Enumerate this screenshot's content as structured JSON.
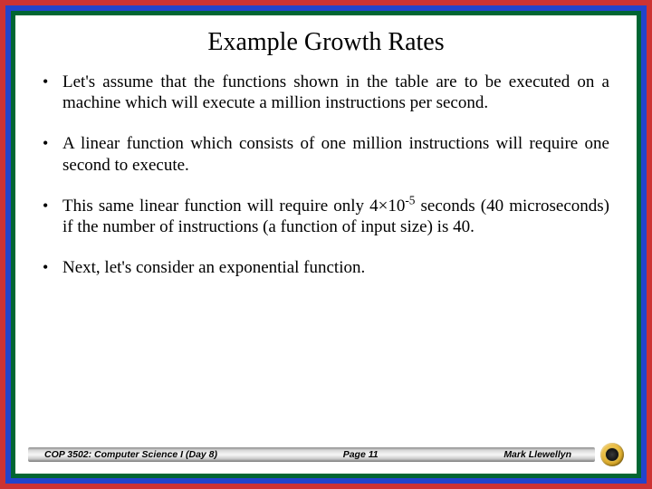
{
  "colors": {
    "border_outer": "#cc3333",
    "border_mid": "#2244cc",
    "border_inner": "#006633",
    "slide_bg": "#ffffff",
    "text": "#000000"
  },
  "title": {
    "text": "Example Growth Rates",
    "font_family": "Comic Sans MS",
    "font_size_pt": 22
  },
  "bullets": [
    {
      "text": "Let's assume that the functions shown in the table are to be executed on a machine which will execute a million instructions per second."
    },
    {
      "text": "A linear function which consists of one million instructions will require one second to execute."
    },
    {
      "prefix": "This same linear function will require only 4×10",
      "sup": "-5",
      "suffix": " seconds (40 microseconds) if the number of instructions (a function of input size) is 40."
    },
    {
      "text": "Next, let's consider an exponential function."
    }
  ],
  "body_font_size_pt": 15,
  "footer": {
    "course": "COP 3502: Computer Science I (Day 8)",
    "page": "Page 11",
    "author": "Mark Llewellyn",
    "font_size_pt": 8
  }
}
